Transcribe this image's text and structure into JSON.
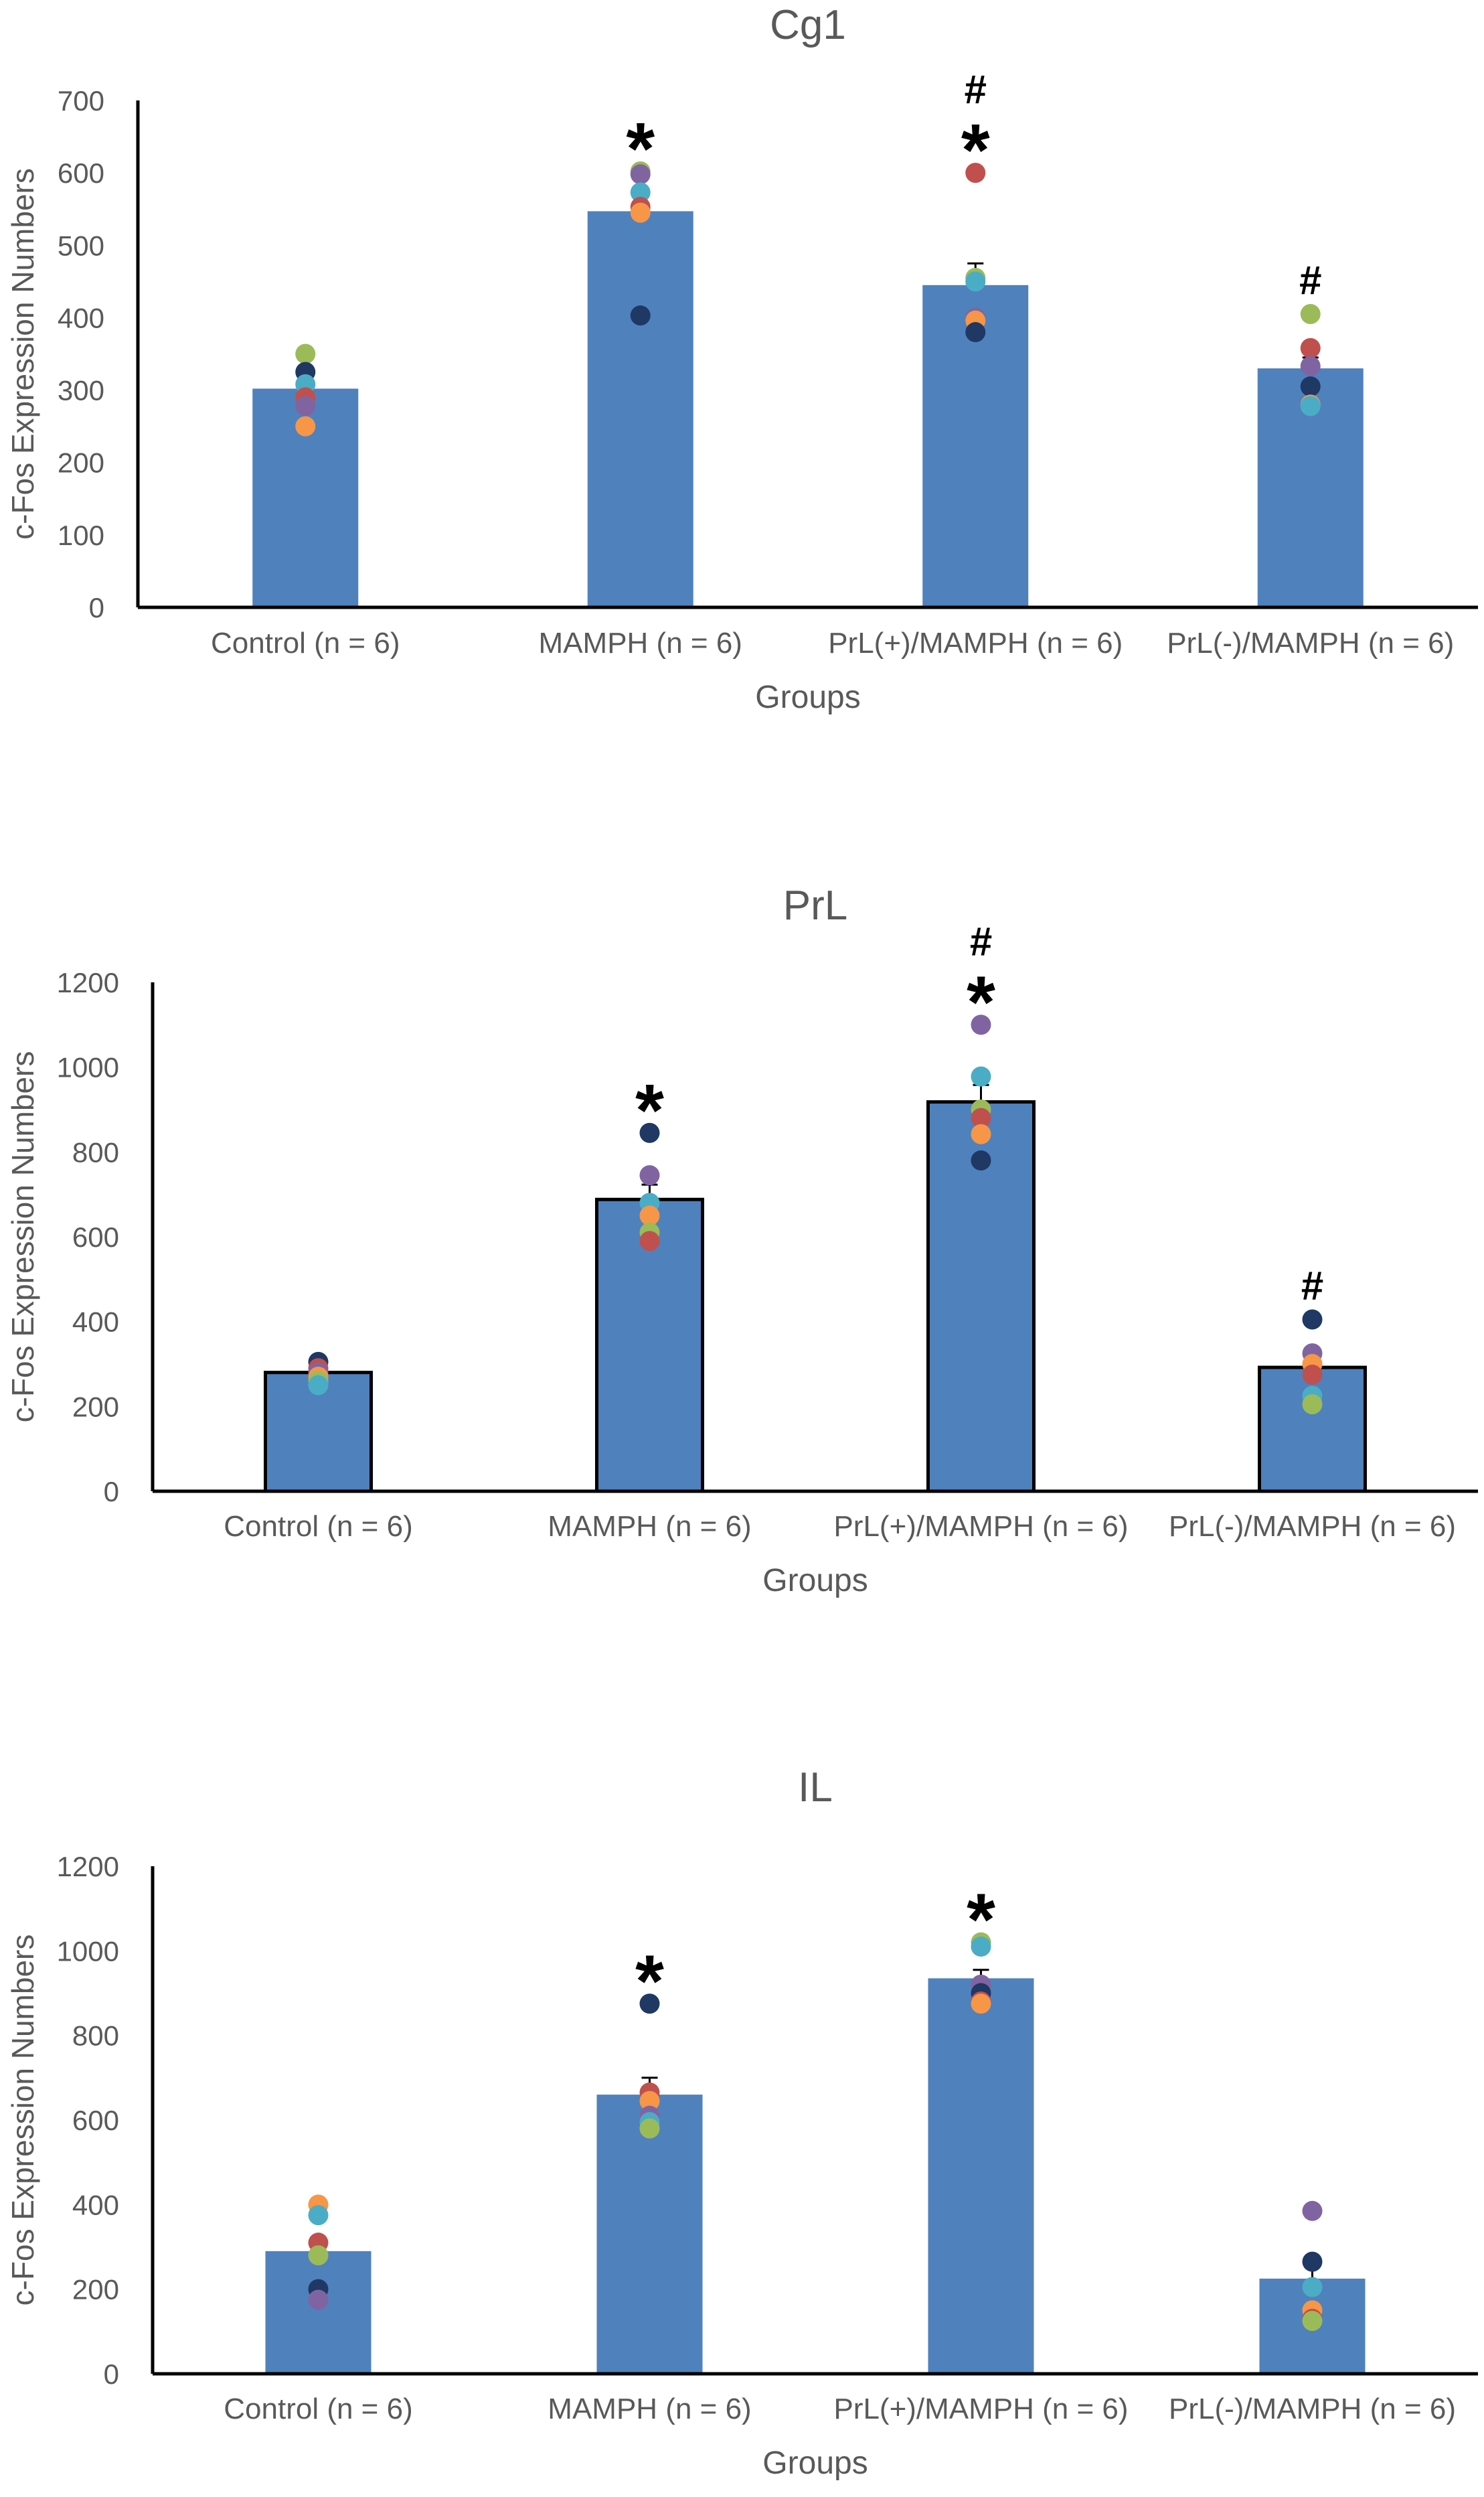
{
  "chart_data": [
    {
      "type": "bar",
      "title": "Cg1",
      "xlabel": "Groups",
      "ylabel": "c-Fos Expression Numbers",
      "ylim": [
        0,
        700
      ],
      "yticks": [
        0,
        100,
        200,
        300,
        400,
        500,
        600,
        700
      ],
      "categories": [
        "Control (n = 6)",
        "MAMPH (n = 6)",
        "PrL(+)/MAMPH (n = 6)",
        "PrL(-)/MAMPH (n = 6)"
      ],
      "values": [
        302,
        547,
        445,
        330
      ],
      "errors": [
        8,
        20,
        30,
        15
      ],
      "bar_outline": false,
      "marks": [
        [],
        [
          "*"
        ],
        [
          "#",
          "*"
        ],
        [
          "#"
        ]
      ],
      "points": [
        [
          {
            "v": 350,
            "c": "#9bbb59"
          },
          {
            "v": 325,
            "c": "#1f3864"
          },
          {
            "v": 308,
            "c": "#4bacc6"
          },
          {
            "v": 290,
            "c": "#c0504d"
          },
          {
            "v": 278,
            "c": "#8064a2"
          },
          {
            "v": 250,
            "c": "#f79646"
          }
        ],
        [
          {
            "v": 602,
            "c": "#9bbb59"
          },
          {
            "v": 598,
            "c": "#8064a2"
          },
          {
            "v": 573,
            "c": "#4bacc6"
          },
          {
            "v": 553,
            "c": "#c0504d"
          },
          {
            "v": 545,
            "c": "#f79646"
          },
          {
            "v": 403,
            "c": "#1f3864"
          }
        ],
        [
          {
            "v": 600,
            "c": "#c0504d"
          },
          {
            "v": 455,
            "c": "#9bbb59"
          },
          {
            "v": 450,
            "c": "#4bacc6"
          },
          {
            "v": 400,
            "c": "#8064a2"
          },
          {
            "v": 396,
            "c": "#f79646"
          },
          {
            "v": 380,
            "c": "#1f3864"
          }
        ],
        [
          {
            "v": 405,
            "c": "#9bbb59"
          },
          {
            "v": 358,
            "c": "#c0504d"
          },
          {
            "v": 333,
            "c": "#8064a2"
          },
          {
            "v": 305,
            "c": "#1f3864"
          },
          {
            "v": 280,
            "c": "#f79646"
          },
          {
            "v": 278,
            "c": "#4bacc6"
          }
        ]
      ]
    },
    {
      "type": "bar",
      "title": "PrL",
      "xlabel": "Groups",
      "ylabel": "c-Fos Expression Numbers",
      "ylim": [
        0,
        1200
      ],
      "yticks": [
        0,
        200,
        400,
        600,
        800,
        1000,
        1200
      ],
      "categories": [
        "Control (n = 6)",
        "MAMPH (n = 6)",
        "PrL(+)/MAMPH (n = 6)",
        "PrL(-)/MAMPH (n = 6)"
      ],
      "values": [
        280,
        688,
        918,
        292
      ],
      "errors": [
        10,
        35,
        40,
        30
      ],
      "bar_outline": true,
      "marks": [
        [],
        [
          "*"
        ],
        [
          "#",
          "*"
        ],
        [
          "#"
        ]
      ],
      "points": [
        [
          {
            "v": 305,
            "c": "#1f3864"
          },
          {
            "v": 290,
            "c": "#c0504d"
          },
          {
            "v": 280,
            "c": "#8064a2"
          },
          {
            "v": 270,
            "c": "#f79646"
          },
          {
            "v": 260,
            "c": "#9bbb59"
          },
          {
            "v": 250,
            "c": "#4bacc6"
          }
        ],
        [
          {
            "v": 845,
            "c": "#1f3864"
          },
          {
            "v": 745,
            "c": "#8064a2"
          },
          {
            "v": 680,
            "c": "#4bacc6"
          },
          {
            "v": 650,
            "c": "#f79646"
          },
          {
            "v": 610,
            "c": "#9bbb59"
          },
          {
            "v": 590,
            "c": "#c0504d"
          }
        ],
        [
          {
            "v": 1100,
            "c": "#8064a2"
          },
          {
            "v": 978,
            "c": "#4bacc6"
          },
          {
            "v": 900,
            "c": "#9bbb59"
          },
          {
            "v": 880,
            "c": "#c0504d"
          },
          {
            "v": 842,
            "c": "#f79646"
          },
          {
            "v": 780,
            "c": "#1f3864"
          }
        ],
        [
          {
            "v": 405,
            "c": "#1f3864"
          },
          {
            "v": 325,
            "c": "#8064a2"
          },
          {
            "v": 300,
            "c": "#f79646"
          },
          {
            "v": 275,
            "c": "#c0504d"
          },
          {
            "v": 225,
            "c": "#4bacc6"
          },
          {
            "v": 205,
            "c": "#9bbb59"
          }
        ]
      ]
    },
    {
      "type": "bar",
      "title": "IL",
      "xlabel": "Groups",
      "ylabel": "c-Fos Expression Numbers",
      "ylim": [
        0,
        1200
      ],
      "yticks": [
        0,
        200,
        400,
        600,
        800,
        1000,
        1200
      ],
      "categories": [
        "Control (n = 6)",
        "MAMPH (n = 6)",
        "PrL(+)/MAMPH (n = 6)",
        "PrL(-)/MAMPH (n = 6)"
      ],
      "values": [
        290,
        660,
        935,
        225
      ],
      "errors": [
        30,
        40,
        20,
        35
      ],
      "bar_outline": false,
      "marks": [
        [],
        [
          "*"
        ],
        [
          "*"
        ],
        []
      ],
      "points": [
        [
          {
            "v": 400,
            "c": "#f79646"
          },
          {
            "v": 375,
            "c": "#4bacc6"
          },
          {
            "v": 310,
            "c": "#c0504d"
          },
          {
            "v": 280,
            "c": "#9bbb59"
          },
          {
            "v": 200,
            "c": "#1f3864"
          },
          {
            "v": 175,
            "c": "#8064a2"
          }
        ],
        [
          {
            "v": 875,
            "c": "#1f3864"
          },
          {
            "v": 665,
            "c": "#c0504d"
          },
          {
            "v": 645,
            "c": "#f79646"
          },
          {
            "v": 610,
            "c": "#8064a2"
          },
          {
            "v": 595,
            "c": "#4bacc6"
          },
          {
            "v": 580,
            "c": "#9bbb59"
          }
        ],
        [
          {
            "v": 1020,
            "c": "#9bbb59"
          },
          {
            "v": 1010,
            "c": "#4bacc6"
          },
          {
            "v": 920,
            "c": "#8064a2"
          },
          {
            "v": 900,
            "c": "#1f3864"
          },
          {
            "v": 880,
            "c": "#c0504d"
          },
          {
            "v": 875,
            "c": "#f79646"
          }
        ],
        [
          {
            "v": 385,
            "c": "#8064a2"
          },
          {
            "v": 265,
            "c": "#1f3864"
          },
          {
            "v": 205,
            "c": "#4bacc6"
          },
          {
            "v": 150,
            "c": "#f79646"
          },
          {
            "v": 130,
            "c": "#c0504d"
          },
          {
            "v": 125,
            "c": "#9bbb59"
          }
        ]
      ]
    }
  ],
  "colors": {
    "bar_fill": "#4f81bd",
    "axis": "#000000",
    "text": "#595959",
    "mark": "#000000"
  }
}
